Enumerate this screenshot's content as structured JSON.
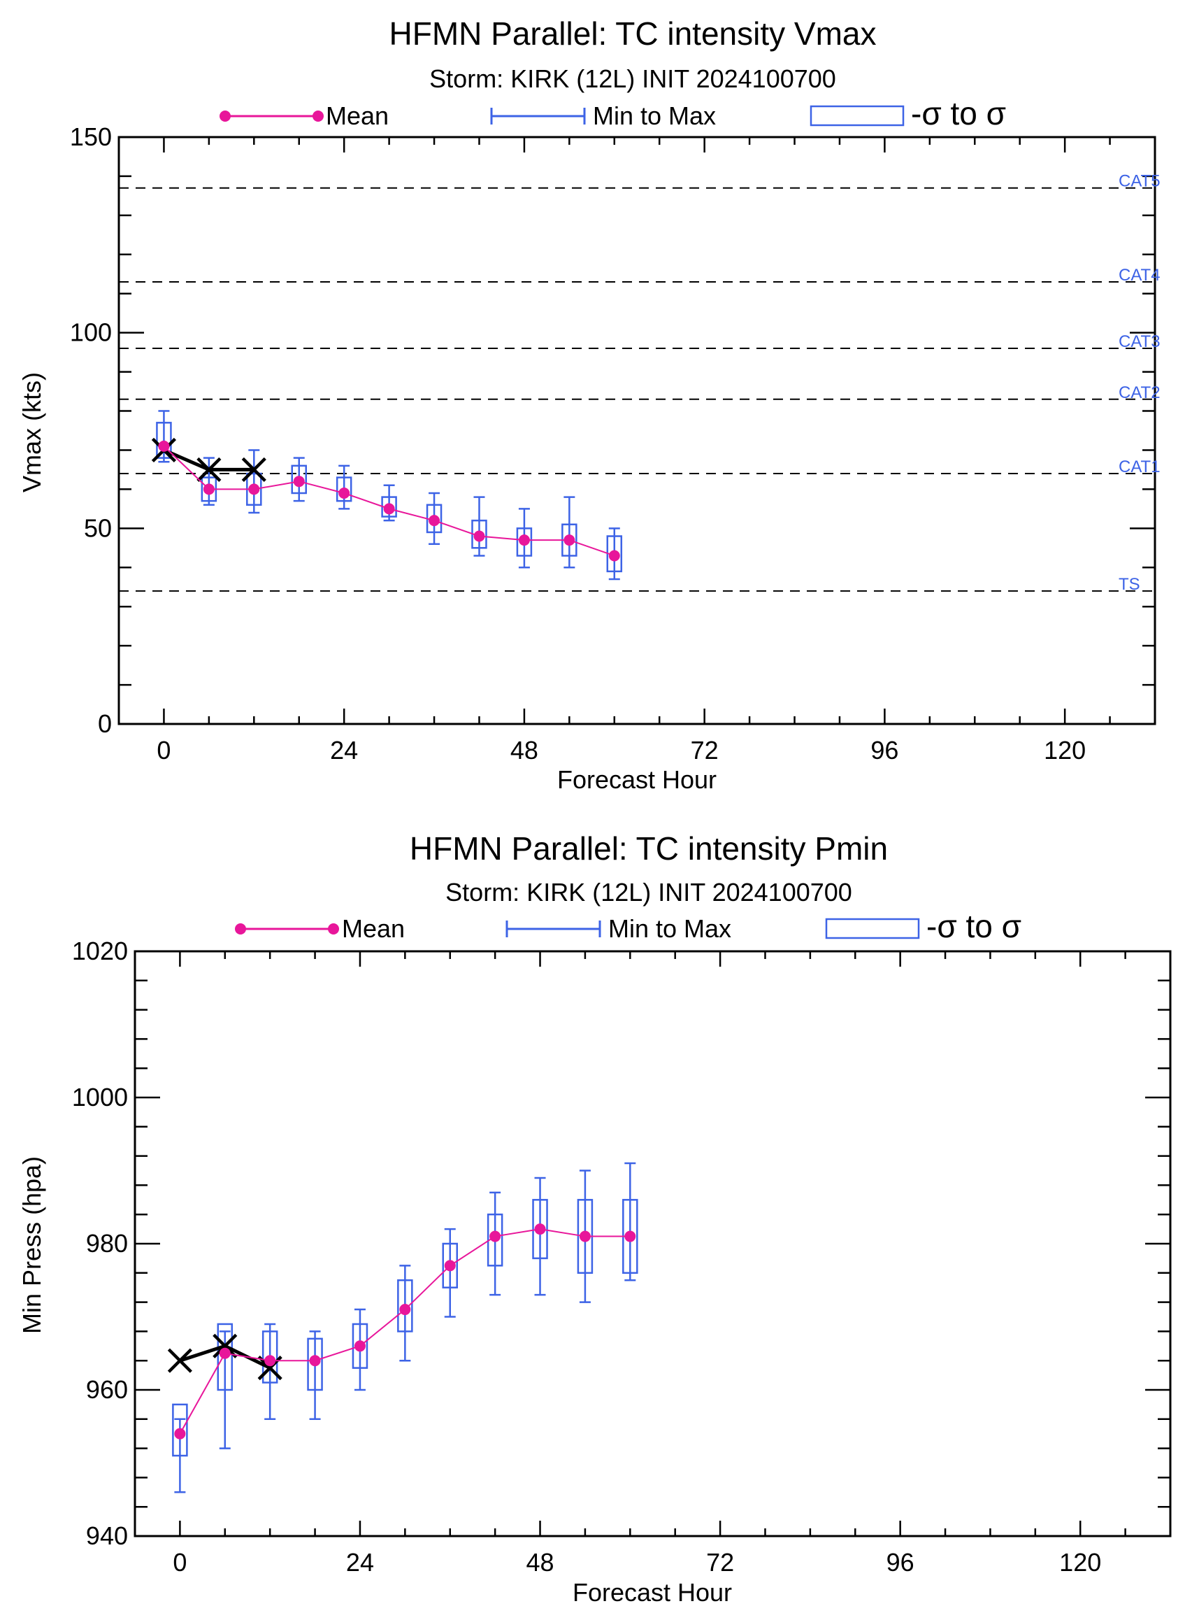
{
  "colors": {
    "mean": "#e8169a",
    "box": "#3d63e6",
    "obs": "#000000",
    "cat_label": "#3d63e6",
    "grid": "#000000"
  },
  "legend": {
    "mean": "Mean",
    "minmax": "Min to Max",
    "sigma": "-σ to σ"
  },
  "chart_data": [
    {
      "type": "line",
      "title": "HFMN Parallel: TC intensity Vmax",
      "subtitle": "Storm: KIRK (12L) INIT 2024100700",
      "xlabel": "Forecast Hour",
      "ylabel": "Vmax (kts)",
      "xlim": [
        -6,
        132
      ],
      "ylim": [
        0,
        150
      ],
      "xticks": [
        0,
        24,
        48,
        72,
        96,
        120
      ],
      "yticks": [
        0,
        50,
        100,
        150
      ],
      "thresholds": [
        {
          "label": "CAT5",
          "value": 137
        },
        {
          "label": "CAT4",
          "value": 113
        },
        {
          "label": "CAT3",
          "value": 96
        },
        {
          "label": "CAT2",
          "value": 83
        },
        {
          "label": "CAT1",
          "value": 64
        },
        {
          "label": "TS",
          "value": 34
        }
      ],
      "x": [
        0,
        6,
        12,
        18,
        24,
        30,
        36,
        42,
        48,
        54,
        60
      ],
      "mean": [
        71,
        60,
        60,
        62,
        59,
        55,
        52,
        48,
        47,
        47,
        43
      ],
      "min": [
        67,
        56,
        54,
        57,
        55,
        52,
        46,
        43,
        40,
        40,
        37
      ],
      "max": [
        80,
        68,
        70,
        68,
        66,
        61,
        59,
        58,
        55,
        58,
        50
      ],
      "sigma_low": [
        68,
        57,
        56,
        59,
        57,
        53,
        49,
        45,
        43,
        43,
        39
      ],
      "sigma_high": [
        77,
        63,
        64,
        66,
        63,
        58,
        56,
        52,
        50,
        51,
        48
      ],
      "observed": {
        "x": [
          0,
          6,
          12
        ],
        "y": [
          70,
          65,
          65
        ]
      }
    },
    {
      "type": "line",
      "title": "HFMN Parallel: TC intensity Pmin",
      "subtitle": "Storm: KIRK (12L) INIT 2024100700",
      "xlabel": "Forecast Hour",
      "ylabel": "Min Press (hpa)",
      "xlim": [
        -6,
        132
      ],
      "ylim": [
        940,
        1020
      ],
      "xticks": [
        0,
        24,
        48,
        72,
        96,
        120
      ],
      "yticks": [
        940,
        960,
        980,
        1000,
        1020
      ],
      "thresholds": [],
      "x": [
        0,
        6,
        12,
        18,
        24,
        30,
        36,
        42,
        48,
        54,
        60
      ],
      "mean": [
        954,
        965,
        964,
        964,
        966,
        971,
        977,
        981,
        982,
        981,
        981
      ],
      "min": [
        946,
        952,
        956,
        956,
        960,
        964,
        970,
        973,
        973,
        972,
        975
      ],
      "max": [
        956,
        968,
        969,
        968,
        971,
        977,
        982,
        987,
        989,
        990,
        991
      ],
      "sigma_low": [
        951,
        960,
        961,
        960,
        963,
        968,
        974,
        977,
        978,
        976,
        976
      ],
      "sigma_high": [
        958,
        969,
        968,
        967,
        969,
        975,
        980,
        984,
        986,
        986,
        986
      ],
      "observed": {
        "x": [
          0,
          6,
          12
        ],
        "y": [
          964,
          966,
          963
        ]
      }
    }
  ]
}
